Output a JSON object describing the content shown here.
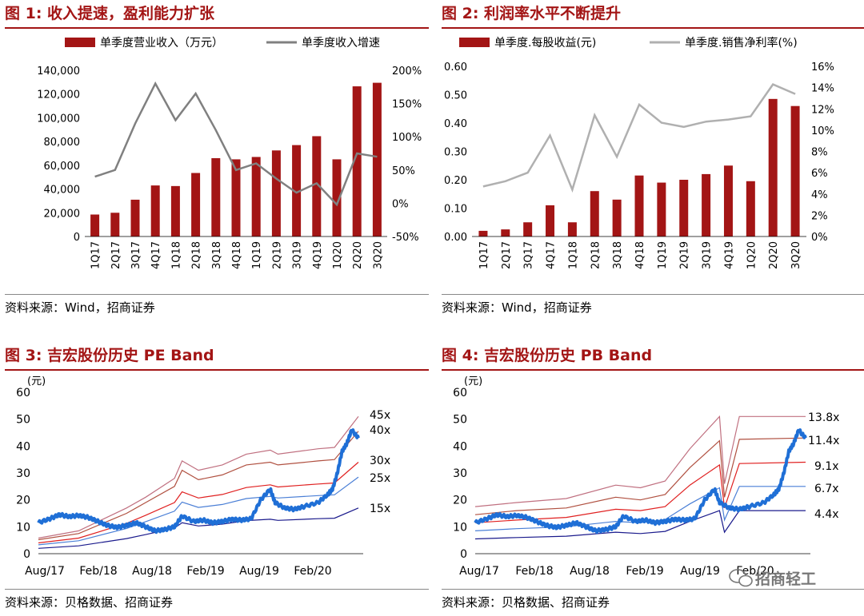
{
  "charts": [
    {
      "title": "图 1: 收入提速，盈利能力扩张",
      "source": "资料来源：Wind，招商证券",
      "legend": [
        "单季度营业收入（万元）",
        "单季度收入增速"
      ]
    },
    {
      "title": "图 2: 利润率水平不断提升",
      "source": "资料来源：Wind，招商证券",
      "legend": [
        "单季度.每股收益(元)",
        "单季度.销售净利率(%)"
      ]
    },
    {
      "title": "图 3: 吉宏股份历史 PE Band",
      "source": "资料来源：贝格数据、招商证券",
      "unit": "(元)"
    },
    {
      "title": "图 4: 吉宏股份历史 PB Band",
      "source": "资料来源：贝格数据、招商证券",
      "unit": "(元)"
    }
  ],
  "watermark": "招商轻工",
  "chart_data": [
    {
      "type": "bar",
      "categories": [
        "1Q17",
        "2Q17",
        "3Q17",
        "4Q17",
        "1Q18",
        "2Q18",
        "3Q18",
        "4Q18",
        "1Q19",
        "2Q19",
        "3Q19",
        "4Q19",
        "1Q20",
        "2Q20",
        "3Q20"
      ],
      "series": [
        {
          "name": "单季度营业收入（万元）",
          "type": "bar",
          "axis": "left",
          "values": [
            18500,
            20000,
            31000,
            43000,
            42500,
            53500,
            66000,
            65000,
            67000,
            72500,
            77000,
            84500,
            65000,
            126500,
            129500
          ]
        },
        {
          "name": "单季度收入增速",
          "type": "line",
          "axis": "right",
          "unit": "%",
          "values": [
            40,
            50,
            120,
            180,
            125,
            165,
            110,
            50,
            60,
            37,
            16,
            30,
            -2,
            75,
            70
          ]
        }
      ],
      "yleft": {
        "min": 0,
        "max": 140000,
        "ticks": [
          "0",
          "20,000",
          "40,000",
          "60,000",
          "80,000",
          "100,000",
          "120,000",
          "140,000"
        ]
      },
      "yright": {
        "min": -50,
        "max": 200,
        "ticks": [
          "-50%",
          "0%",
          "50%",
          "100%",
          "150%",
          "200%"
        ]
      },
      "colors": {
        "bar": "#a31515",
        "line": "#808080"
      }
    },
    {
      "type": "bar",
      "categories": [
        "1Q17",
        "2Q17",
        "3Q17",
        "4Q17",
        "1Q18",
        "2Q18",
        "3Q18",
        "4Q18",
        "1Q19",
        "2Q19",
        "3Q19",
        "4Q19",
        "1Q20",
        "2Q20",
        "3Q20"
      ],
      "series": [
        {
          "name": "单季度.每股收益(元)",
          "type": "bar",
          "axis": "left",
          "values": [
            0.02,
            0.025,
            0.05,
            0.11,
            0.05,
            0.16,
            0.13,
            0.215,
            0.19,
            0.2,
            0.22,
            0.25,
            0.195,
            0.485,
            0.46
          ]
        },
        {
          "name": "单季度.销售净利率(%)",
          "type": "line",
          "axis": "right",
          "unit": "%",
          "values": [
            4.7,
            5.2,
            6.0,
            9.5,
            4.4,
            11.4,
            7.5,
            12.4,
            10.7,
            10.3,
            10.8,
            11.0,
            11.3,
            14.3,
            13.4
          ]
        }
      ],
      "yleft": {
        "min": 0,
        "max": 0.6,
        "ticks": [
          "0.00",
          "0.10",
          "0.20",
          "0.30",
          "0.40",
          "0.50",
          "0.60"
        ]
      },
      "yright": {
        "min": 0,
        "max": 16,
        "ticks": [
          "0%",
          "2%",
          "4%",
          "6%",
          "8%",
          "10%",
          "12%",
          "14%",
          "16%"
        ]
      },
      "colors": {
        "bar": "#a31515",
        "line": "#b0b0b0"
      }
    },
    {
      "type": "line",
      "xlabels": [
        "Aug/17",
        "Feb/18",
        "Aug/18",
        "Feb/19",
        "Aug/19",
        "Feb/20"
      ],
      "x_range": [
        2017.58,
        2020.92
      ],
      "ylim": [
        0,
        60
      ],
      "yticks": [
        "0",
        "10",
        "20",
        "30",
        "40",
        "50",
        "60"
      ],
      "band_labels": [
        "45x",
        "40x",
        "30x",
        "25x",
        "15x"
      ],
      "bands": [
        {
          "name": "45x",
          "color": "#c07080",
          "points": [
            [
              2017.58,
              5.8
            ],
            [
              2018.0,
              8.5
            ],
            [
              2018.5,
              17
            ],
            [
              2018.7,
              21
            ],
            [
              2019.0,
              28
            ],
            [
              2019.08,
              34.5
            ],
            [
              2019.25,
              31
            ],
            [
              2019.5,
              33
            ],
            [
              2019.75,
              37
            ],
            [
              2020.0,
              38.5
            ],
            [
              2020.08,
              37
            ],
            [
              2020.5,
              39
            ],
            [
              2020.67,
              39.5
            ],
            [
              2020.92,
              51
            ]
          ]
        },
        {
          "name": "40x",
          "color": "#b05040",
          "points": [
            [
              2017.58,
              5.2
            ],
            [
              2018.0,
              7.5
            ],
            [
              2018.5,
              15
            ],
            [
              2018.7,
              19
            ],
            [
              2019.0,
              25
            ],
            [
              2019.08,
              31
            ],
            [
              2019.25,
              27.5
            ],
            [
              2019.5,
              29.3
            ],
            [
              2019.75,
              33
            ],
            [
              2020.0,
              34
            ],
            [
              2020.08,
              33
            ],
            [
              2020.5,
              34.5
            ],
            [
              2020.67,
              35
            ],
            [
              2020.92,
              45.5
            ]
          ]
        },
        {
          "name": "30x",
          "color": "#e02020",
          "points": [
            [
              2017.58,
              4.0
            ],
            [
              2018.0,
              5.8
            ],
            [
              2018.5,
              11.3
            ],
            [
              2018.7,
              14.3
            ],
            [
              2019.0,
              19
            ],
            [
              2019.08,
              23
            ],
            [
              2019.25,
              20.7
            ],
            [
              2019.5,
              22
            ],
            [
              2019.75,
              24.6
            ],
            [
              2020.0,
              25.6
            ],
            [
              2020.08,
              24.8
            ],
            [
              2020.5,
              25.9
            ],
            [
              2020.67,
              26.3
            ],
            [
              2020.92,
              34
            ]
          ]
        },
        {
          "name": "25x",
          "color": "#4a7fd6",
          "points": [
            [
              2017.58,
              3.3
            ],
            [
              2018.0,
              4.8
            ],
            [
              2018.5,
              9.4
            ],
            [
              2018.7,
              11.9
            ],
            [
              2019.0,
              15.8
            ],
            [
              2019.08,
              19.2
            ],
            [
              2019.25,
              17.2
            ],
            [
              2019.5,
              18.3
            ],
            [
              2019.75,
              20.5
            ],
            [
              2020.0,
              21.3
            ],
            [
              2020.08,
              20.7
            ],
            [
              2020.5,
              21.6
            ],
            [
              2020.67,
              21.9
            ],
            [
              2020.92,
              28.5
            ]
          ]
        },
        {
          "name": "15x",
          "color": "#1a1a8c",
          "points": [
            [
              2017.58,
              2.0
            ],
            [
              2018.0,
              2.9
            ],
            [
              2018.5,
              5.6
            ],
            [
              2018.7,
              7.1
            ],
            [
              2019.0,
              9.5
            ],
            [
              2019.08,
              11.5
            ],
            [
              2019.25,
              10.3
            ],
            [
              2019.5,
              11
            ],
            [
              2019.75,
              12.3
            ],
            [
              2020.0,
              12.8
            ],
            [
              2020.08,
              12.4
            ],
            [
              2020.5,
              13
            ],
            [
              2020.67,
              13.2
            ],
            [
              2020.92,
              17
            ]
          ]
        }
      ],
      "price": {
        "color": "#1f6fd6",
        "points": [
          [
            2017.58,
            11.5
          ],
          [
            2017.7,
            13
          ],
          [
            2017.8,
            14.5
          ],
          [
            2017.9,
            13.8
          ],
          [
            2018.0,
            14.2
          ],
          [
            2018.1,
            13.5
          ],
          [
            2018.2,
            12
          ],
          [
            2018.3,
            10.5
          ],
          [
            2018.4,
            9.8
          ],
          [
            2018.5,
            10.5
          ],
          [
            2018.6,
            11.5
          ],
          [
            2018.7,
            10
          ],
          [
            2018.8,
            8.5
          ],
          [
            2018.9,
            9
          ],
          [
            2019.0,
            10
          ],
          [
            2019.08,
            14
          ],
          [
            2019.2,
            12
          ],
          [
            2019.3,
            12.5
          ],
          [
            2019.4,
            11.5
          ],
          [
            2019.5,
            12
          ],
          [
            2019.6,
            12.8
          ],
          [
            2019.7,
            12.5
          ],
          [
            2019.8,
            13
          ],
          [
            2019.9,
            20
          ],
          [
            2020.0,
            24
          ],
          [
            2020.05,
            19
          ],
          [
            2020.15,
            17
          ],
          [
            2020.25,
            16.5
          ],
          [
            2020.35,
            17.5
          ],
          [
            2020.5,
            19
          ],
          [
            2020.6,
            22
          ],
          [
            2020.65,
            24
          ],
          [
            2020.7,
            30
          ],
          [
            2020.75,
            38
          ],
          [
            2020.8,
            41
          ],
          [
            2020.85,
            46
          ],
          [
            2020.92,
            43
          ]
        ]
      }
    },
    {
      "type": "line",
      "xlabels": [
        "Aug/17",
        "Feb/18",
        "Aug/18",
        "Feb/19",
        "Aug/19",
        "Feb/20"
      ],
      "x_range": [
        2017.58,
        2020.92
      ],
      "ylim": [
        0,
        60
      ],
      "yticks": [
        "0",
        "10",
        "20",
        "30",
        "40",
        "50",
        "60"
      ],
      "band_labels": [
        "13.8x",
        "11.4x",
        "9.1x",
        "6.7x",
        "4.4x"
      ],
      "bands": [
        {
          "name": "13.8x",
          "color": "#c07080",
          "points": [
            [
              2017.58,
              17.5
            ],
            [
              2018.0,
              19
            ],
            [
              2018.5,
              20.5
            ],
            [
              2019.0,
              25.5
            ],
            [
              2019.25,
              24.5
            ],
            [
              2019.5,
              27
            ],
            [
              2019.75,
              39
            ],
            [
              2020.05,
              51
            ],
            [
              2020.1,
              26
            ],
            [
              2020.25,
              51
            ],
            [
              2020.92,
              51
            ]
          ]
        },
        {
          "name": "11.4x",
          "color": "#b05040",
          "points": [
            [
              2017.58,
              14.5
            ],
            [
              2018.0,
              16
            ],
            [
              2018.5,
              17
            ],
            [
              2019.0,
              21
            ],
            [
              2019.25,
              20
            ],
            [
              2019.5,
              22
            ],
            [
              2019.75,
              32
            ],
            [
              2020.05,
              42
            ],
            [
              2020.1,
              21
            ],
            [
              2020.25,
              42.5
            ],
            [
              2020.92,
              43
            ]
          ]
        },
        {
          "name": "9.1x",
          "color": "#e02020",
          "points": [
            [
              2017.58,
              11.5
            ],
            [
              2018.0,
              12.5
            ],
            [
              2018.5,
              13.5
            ],
            [
              2019.0,
              16.5
            ],
            [
              2019.25,
              16
            ],
            [
              2019.5,
              17.5
            ],
            [
              2019.75,
              25.5
            ],
            [
              2020.05,
              33
            ],
            [
              2020.1,
              17
            ],
            [
              2020.25,
              33.5
            ],
            [
              2020.92,
              34
            ]
          ]
        },
        {
          "name": "6.7x",
          "color": "#4a7fd6",
          "points": [
            [
              2017.58,
              8.5
            ],
            [
              2018.0,
              9.3
            ],
            [
              2018.5,
              10
            ],
            [
              2019.0,
              12
            ],
            [
              2019.25,
              11.5
            ],
            [
              2019.5,
              12.7
            ],
            [
              2019.75,
              18.5
            ],
            [
              2020.05,
              24.5
            ],
            [
              2020.1,
              12.5
            ],
            [
              2020.25,
              25
            ],
            [
              2020.92,
              25
            ]
          ]
        },
        {
          "name": "4.4x",
          "color": "#1a1a8c",
          "points": [
            [
              2017.58,
              5.5
            ],
            [
              2018.0,
              6.0
            ],
            [
              2018.5,
              6.5
            ],
            [
              2019.0,
              8
            ],
            [
              2019.25,
              7.5
            ],
            [
              2019.5,
              8.3
            ],
            [
              2019.75,
              12
            ],
            [
              2020.05,
              16
            ],
            [
              2020.1,
              8
            ],
            [
              2020.25,
              16
            ],
            [
              2020.92,
              16
            ]
          ]
        }
      ],
      "price": {
        "color": "#1f6fd6",
        "points": [
          [
            2017.58,
            11.5
          ],
          [
            2017.7,
            13
          ],
          [
            2017.8,
            14.5
          ],
          [
            2017.9,
            13.8
          ],
          [
            2018.0,
            14.2
          ],
          [
            2018.1,
            13.5
          ],
          [
            2018.2,
            12
          ],
          [
            2018.3,
            10.5
          ],
          [
            2018.4,
            9.8
          ],
          [
            2018.5,
            10.5
          ],
          [
            2018.6,
            11.5
          ],
          [
            2018.7,
            10
          ],
          [
            2018.8,
            8.5
          ],
          [
            2018.9,
            9
          ],
          [
            2019.0,
            10
          ],
          [
            2019.08,
            14
          ],
          [
            2019.2,
            12
          ],
          [
            2019.3,
            12.5
          ],
          [
            2019.4,
            11.5
          ],
          [
            2019.5,
            12
          ],
          [
            2019.6,
            12.8
          ],
          [
            2019.7,
            12.5
          ],
          [
            2019.8,
            13
          ],
          [
            2019.9,
            20
          ],
          [
            2020.0,
            24
          ],
          [
            2020.05,
            19
          ],
          [
            2020.15,
            17
          ],
          [
            2020.25,
            16.5
          ],
          [
            2020.35,
            17.5
          ],
          [
            2020.5,
            19
          ],
          [
            2020.6,
            22
          ],
          [
            2020.65,
            24
          ],
          [
            2020.7,
            30
          ],
          [
            2020.75,
            38
          ],
          [
            2020.8,
            41
          ],
          [
            2020.85,
            46
          ],
          [
            2020.92,
            43
          ]
        ]
      }
    }
  ]
}
